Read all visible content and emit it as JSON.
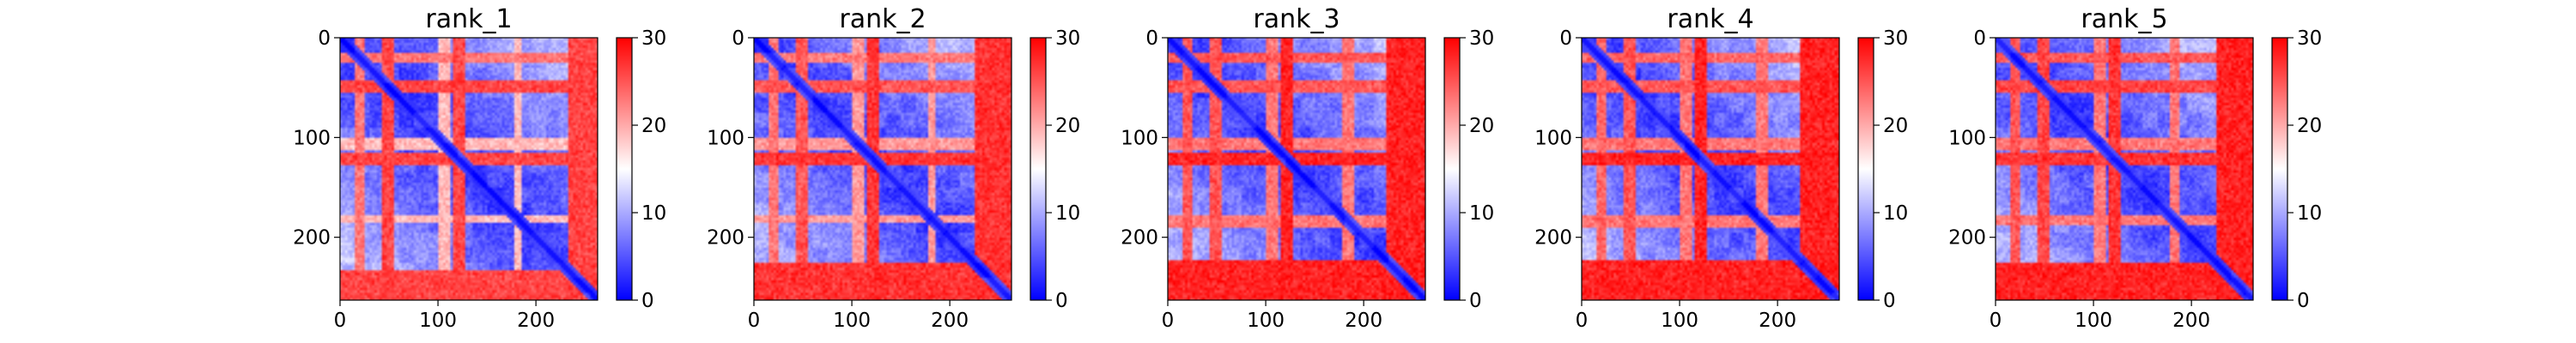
{
  "chart_data": [
    {
      "type": "heatmap",
      "title": "rank_1",
      "matrix_size": 263,
      "x_ticks": [
        0,
        100,
        200
      ],
      "y_ticks": [
        0,
        100,
        200
      ],
      "colorbar": {
        "range": [
          0,
          30
        ],
        "ticks": [
          0,
          10,
          20,
          30
        ],
        "colormap": "bwr"
      },
      "bands": [
        {
          "range": [
            15,
            25
          ],
          "value": 24
        },
        {
          "range": [
            42,
            55
          ],
          "value": 27
        },
        {
          "range": [
            100,
            112
          ],
          "value": 20
        },
        {
          "range": [
            115,
            128
          ],
          "value": 27
        },
        {
          "range": [
            178,
            185
          ],
          "value": 20
        },
        {
          "range": [
            232,
            263
          ],
          "value": 27
        }
      ]
    },
    {
      "type": "heatmap",
      "title": "rank_2",
      "matrix_size": 263,
      "x_ticks": [
        0,
        100,
        200
      ],
      "y_ticks": [
        0,
        100,
        200
      ],
      "colorbar": {
        "range": [
          0,
          30
        ],
        "ticks": [
          0,
          10,
          20,
          30
        ],
        "colormap": "bwr"
      },
      "bands": [
        {
          "range": [
            15,
            25
          ],
          "value": 24
        },
        {
          "range": [
            42,
            55
          ],
          "value": 26
        },
        {
          "range": [
            100,
            112
          ],
          "value": 22
        },
        {
          "range": [
            115,
            128
          ],
          "value": 28
        },
        {
          "range": [
            178,
            185
          ],
          "value": 22
        },
        {
          "range": [
            225,
            263
          ],
          "value": 28
        }
      ]
    },
    {
      "type": "heatmap",
      "title": "rank_3",
      "matrix_size": 263,
      "x_ticks": [
        0,
        100,
        200
      ],
      "y_ticks": [
        0,
        100,
        200
      ],
      "colorbar": {
        "range": [
          0,
          30
        ],
        "ticks": [
          0,
          10,
          20,
          30
        ],
        "colormap": "bwr"
      },
      "bands": [
        {
          "range": [
            15,
            25
          ],
          "value": 26
        },
        {
          "range": [
            42,
            55
          ],
          "value": 26
        },
        {
          "range": [
            100,
            112
          ],
          "value": 24
        },
        {
          "range": [
            115,
            128
          ],
          "value": 29
        },
        {
          "range": [
            178,
            190
          ],
          "value": 24
        },
        {
          "range": [
            222,
            263
          ],
          "value": 29
        }
      ]
    },
    {
      "type": "heatmap",
      "title": "rank_4",
      "matrix_size": 263,
      "x_ticks": [
        0,
        100,
        200
      ],
      "y_ticks": [
        0,
        100,
        200
      ],
      "colorbar": {
        "range": [
          0,
          30
        ],
        "ticks": [
          0,
          10,
          20,
          30
        ],
        "colormap": "bwr"
      },
      "bands": [
        {
          "range": [
            15,
            25
          ],
          "value": 25
        },
        {
          "range": [
            42,
            55
          ],
          "value": 26
        },
        {
          "range": [
            100,
            112
          ],
          "value": 24
        },
        {
          "range": [
            115,
            128
          ],
          "value": 29
        },
        {
          "range": [
            178,
            190
          ],
          "value": 24
        },
        {
          "range": [
            222,
            263
          ],
          "value": 29
        }
      ]
    },
    {
      "type": "heatmap",
      "title": "rank_5",
      "matrix_size": 263,
      "x_ticks": [
        0,
        100,
        200
      ],
      "y_ticks": [
        0,
        100,
        200
      ],
      "colorbar": {
        "range": [
          0,
          30
        ],
        "ticks": [
          0,
          10,
          20,
          30
        ],
        "colormap": "bwr"
      },
      "bands": [
        {
          "range": [
            15,
            25
          ],
          "value": 26
        },
        {
          "range": [
            42,
            55
          ],
          "value": 27
        },
        {
          "range": [
            100,
            112
          ],
          "value": 24
        },
        {
          "range": [
            115,
            128
          ],
          "value": 28
        },
        {
          "range": [
            178,
            188
          ],
          "value": 24
        },
        {
          "range": [
            225,
            263
          ],
          "value": 29
        }
      ]
    }
  ]
}
